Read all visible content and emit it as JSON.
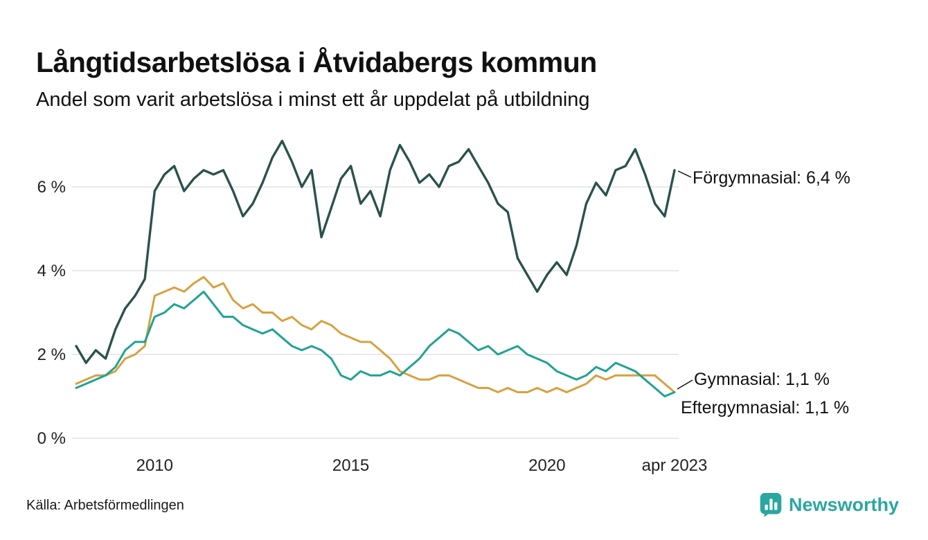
{
  "header": {
    "title": "Långtidsarbetslösa i Åtvidabergs kommun",
    "subtitle": "Andel som varit arbetslösa i minst ett år uppdelat på utbildning"
  },
  "footer": {
    "source": "Källa: Arbetsförmedlingen",
    "brand_name": "Newsworthy"
  },
  "colors": {
    "grid": "#e3e3e3",
    "tick_text": "#222222",
    "title_text": "#111111",
    "brand": "#2aa7a0"
  },
  "chart_data": {
    "type": "line",
    "title": "Långtidsarbetslösa i Åtvidabergs kommun",
    "subtitle": "Andel som varit arbetslösa i minst ett år uppdelat på utbildning",
    "ylabel": "",
    "xlabel": "",
    "ylim": [
      0,
      7.4
    ],
    "grid": "horizontal",
    "legend_position": "end-of-line-labels",
    "y_ticks": [
      0,
      2,
      4,
      6
    ],
    "y_tick_labels": [
      "0 %",
      "2 %",
      "4 %",
      "6 %"
    ],
    "x_ticks": [
      2010,
      2015,
      2020,
      2023.25
    ],
    "x_tick_labels": [
      "2010",
      "2015",
      "2020",
      "apr 2023"
    ],
    "x": [
      2008,
      2008.25,
      2008.5,
      2008.75,
      2009,
      2009.25,
      2009.5,
      2009.75,
      2010,
      2010.25,
      2010.5,
      2010.75,
      2011,
      2011.25,
      2011.5,
      2011.75,
      2012,
      2012.25,
      2012.5,
      2012.75,
      2013,
      2013.25,
      2013.5,
      2013.75,
      2014,
      2014.25,
      2014.5,
      2014.75,
      2015,
      2015.25,
      2015.5,
      2015.75,
      2016,
      2016.25,
      2016.5,
      2016.75,
      2017,
      2017.25,
      2017.5,
      2017.75,
      2018,
      2018.25,
      2018.5,
      2018.75,
      2019,
      2019.25,
      2019.5,
      2019.75,
      2020,
      2020.25,
      2020.5,
      2020.75,
      2021,
      2021.25,
      2021.5,
      2021.75,
      2022,
      2022.25,
      2022.5,
      2022.75,
      2023,
      2023.25
    ],
    "series": [
      {
        "name": "Gymnasial",
        "color": "#d7a13f",
        "width": 3,
        "end_value": 1.1,
        "end_label": "Gymnasial: 1,1 %",
        "values": [
          1.3,
          1.4,
          1.5,
          1.5,
          1.6,
          1.9,
          2.0,
          2.2,
          3.4,
          3.5,
          3.6,
          3.5,
          3.7,
          3.85,
          3.6,
          3.7,
          3.3,
          3.1,
          3.2,
          3.0,
          3.0,
          2.8,
          2.9,
          2.7,
          2.6,
          2.8,
          2.7,
          2.5,
          2.4,
          2.3,
          2.3,
          2.1,
          1.9,
          1.6,
          1.5,
          1.4,
          1.4,
          1.5,
          1.5,
          1.4,
          1.3,
          1.2,
          1.2,
          1.1,
          1.2,
          1.1,
          1.1,
          1.2,
          1.1,
          1.2,
          1.1,
          1.2,
          1.3,
          1.5,
          1.4,
          1.5,
          1.5,
          1.5,
          1.5,
          1.5,
          1.3,
          1.1
        ]
      },
      {
        "name": "Eftergymnasial",
        "color": "#1fa294",
        "width": 3,
        "end_value": 1.1,
        "end_label": "Eftergymnasial: 1,1 %",
        "values": [
          1.2,
          1.3,
          1.4,
          1.5,
          1.7,
          2.1,
          2.3,
          2.3,
          2.9,
          3.0,
          3.2,
          3.1,
          3.3,
          3.5,
          3.2,
          2.9,
          2.9,
          2.7,
          2.6,
          2.5,
          2.6,
          2.4,
          2.2,
          2.1,
          2.2,
          2.1,
          1.9,
          1.5,
          1.4,
          1.6,
          1.5,
          1.5,
          1.6,
          1.5,
          1.7,
          1.9,
          2.2,
          2.4,
          2.6,
          2.5,
          2.3,
          2.1,
          2.2,
          2.0,
          2.1,
          2.2,
          2.0,
          1.9,
          1.8,
          1.6,
          1.5,
          1.4,
          1.5,
          1.7,
          1.6,
          1.8,
          1.7,
          1.6,
          1.4,
          1.2,
          1.0,
          1.1
        ]
      },
      {
        "name": "Förgymnasial",
        "color": "#2a524d",
        "width": 3.4,
        "end_value": 6.4,
        "end_label": "Förgymnasial: 6,4 %",
        "values": [
          2.2,
          1.8,
          2.1,
          1.9,
          2.6,
          3.1,
          3.4,
          3.8,
          5.9,
          6.3,
          6.5,
          5.9,
          6.2,
          6.4,
          6.3,
          6.4,
          5.9,
          5.3,
          5.6,
          6.1,
          6.7,
          7.1,
          6.6,
          6.0,
          6.4,
          4.8,
          5.5,
          6.2,
          6.5,
          5.6,
          5.9,
          5.3,
          6.4,
          7.0,
          6.6,
          6.1,
          6.3,
          6.0,
          6.5,
          6.6,
          6.9,
          6.5,
          6.1,
          5.6,
          5.4,
          4.3,
          3.9,
          3.5,
          3.9,
          4.2,
          3.9,
          4.6,
          5.6,
          6.1,
          5.8,
          6.4,
          6.5,
          6.9,
          6.3,
          5.6,
          5.3,
          6.4
        ]
      }
    ]
  }
}
